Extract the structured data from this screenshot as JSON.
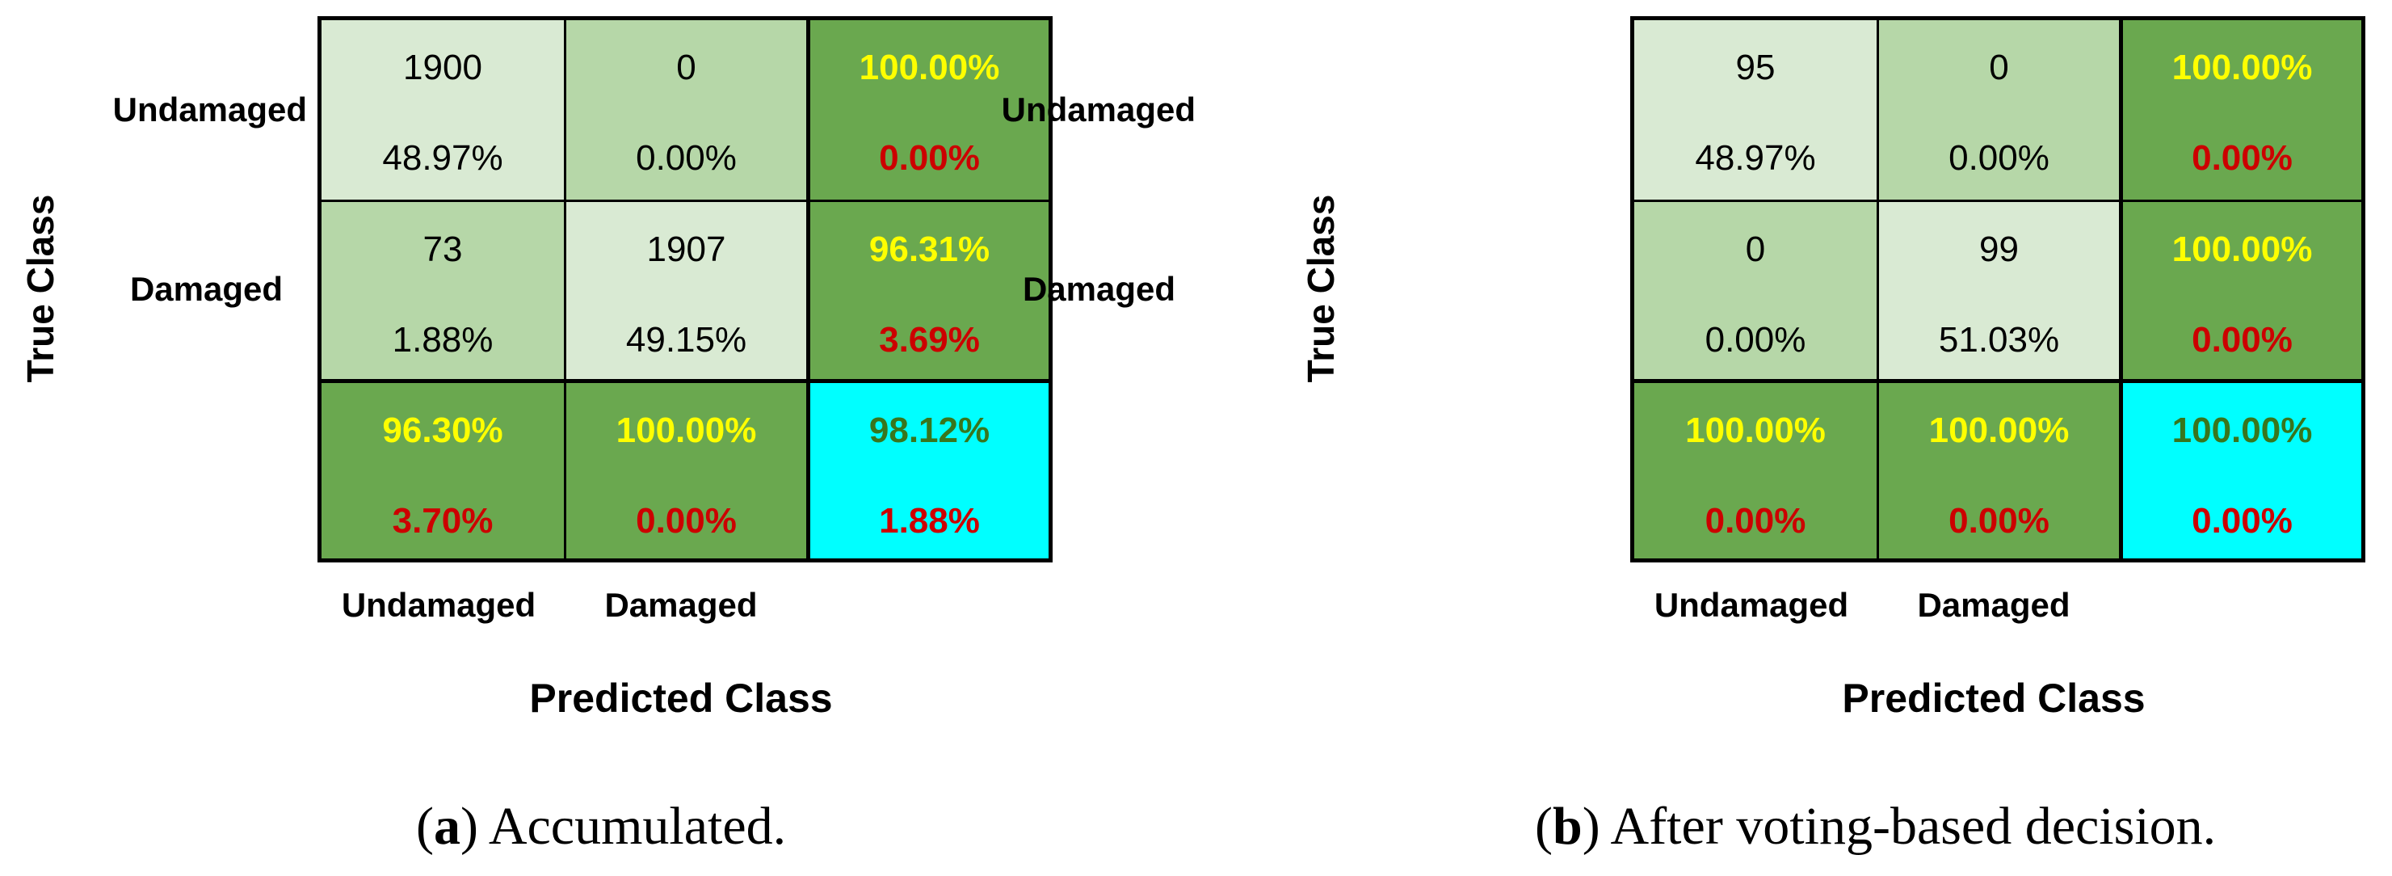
{
  "chart_data": [
    {
      "type": "heatmap",
      "subtype": "confusion-matrix",
      "caption_letter": "a",
      "caption_text": ") Accumulated.",
      "caption_open": "(",
      "ylabel": "True Class",
      "xlabel": "Predicted Class",
      "row_labels": [
        "Undamaged",
        "Damaged"
      ],
      "col_labels": [
        "Undamaged",
        "Damaged"
      ],
      "counts": [
        [
          1900,
          0
        ],
        [
          73,
          1907
        ]
      ],
      "count_percents": [
        [
          "48.97%",
          "0.00%"
        ],
        [
          "1.88%",
          "49.15%"
        ]
      ],
      "row_summary": [
        [
          "100.00%",
          "0.00%"
        ],
        [
          "96.31%",
          "3.69%"
        ]
      ],
      "col_summary": [
        [
          "96.30%",
          "3.70%"
        ],
        [
          "100.00%",
          "0.00%"
        ]
      ],
      "overall": [
        "98.12%",
        "1.88%"
      ]
    },
    {
      "type": "heatmap",
      "subtype": "confusion-matrix",
      "caption_letter": "b",
      "caption_text": ") After voting-based decision.",
      "caption_open": "(",
      "ylabel": "True Class",
      "xlabel": "Predicted Class",
      "row_labels": [
        "Undamaged",
        "Damaged"
      ],
      "col_labels": [
        "Undamaged",
        "Damaged"
      ],
      "counts": [
        [
          95,
          0
        ],
        [
          0,
          99
        ]
      ],
      "count_percents": [
        [
          "48.97%",
          "0.00%"
        ],
        [
          "0.00%",
          "51.03%"
        ]
      ],
      "row_summary": [
        [
          "100.00%",
          "0.00%"
        ],
        [
          "100.00%",
          "0.00%"
        ]
      ],
      "col_summary": [
        [
          "100.00%",
          "0.00%"
        ],
        [
          "100.00%",
          "0.00%"
        ]
      ],
      "overall": [
        "100.00%",
        "0.00%"
      ]
    }
  ],
  "colors": {
    "correct_cell": "#d9ead3",
    "error_cell": "#b6d7a8",
    "summary_cell": "#6aa84f",
    "overall_cell": "#00ffff",
    "summary_top_text": "#ffff00",
    "summary_bottom_text": "#cc0000",
    "overall_top_text": "#38761d"
  }
}
